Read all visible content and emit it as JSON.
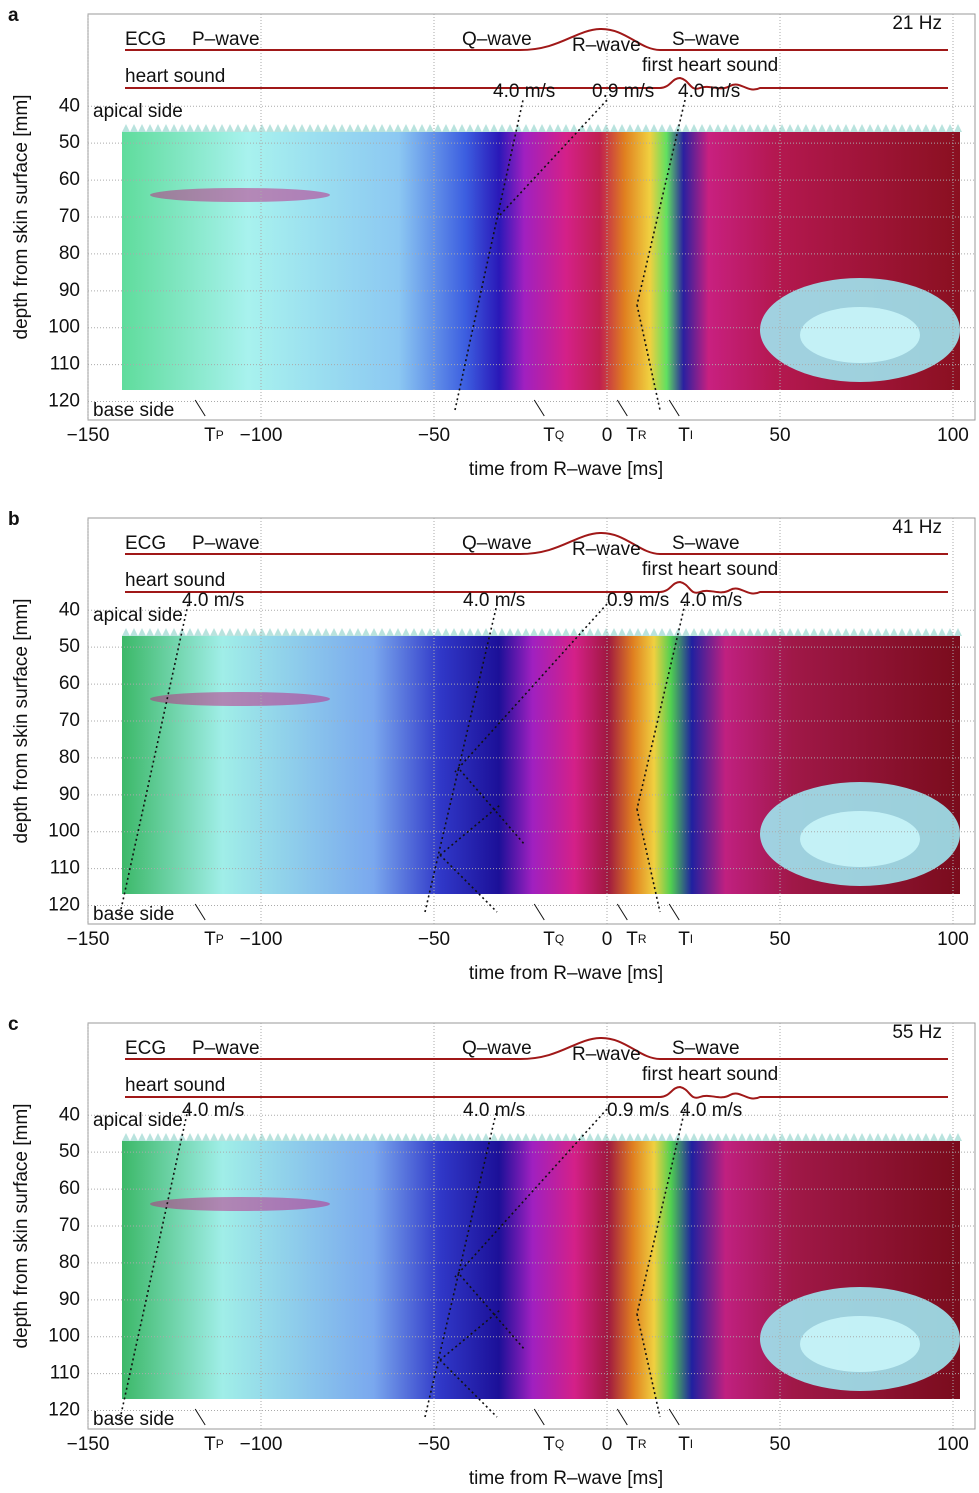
{
  "chart_data": [
    {
      "type": "heatmap",
      "panel_label": "a",
      "frequency_label": "21 Hz",
      "xlabel": "time from R–wave [ms]",
      "ylabel": "depth from skin surface [mm]",
      "xlim": [
        -150,
        100
      ],
      "xticks": [
        {
          "value": -150,
          "label": "−150"
        },
        {
          "value": -100,
          "label": "−100"
        },
        {
          "value": -50,
          "label": "−50"
        },
        0,
        50,
        100
      ],
      "ylim": [
        15,
        125
      ],
      "yticks": [
        40,
        50,
        60,
        70,
        80,
        90,
        100,
        110,
        120
      ],
      "y_inverted": true,
      "grid": true,
      "time_markers": [
        {
          "label": "T",
          "subscript": "P",
          "x": -117
        },
        {
          "label": "T",
          "subscript": "Q",
          "x": -19
        },
        {
          "label": "T",
          "subscript": "R",
          "x": 5
        },
        {
          "label": "T",
          "subscript": "I",
          "x": 20
        }
      ],
      "annotations": [
        "ECG",
        "P–wave",
        "Q–wave",
        "R–wave",
        "S–wave",
        "heart sound",
        "first heart sound",
        "apical side",
        "base side"
      ],
      "velocity_labels": [
        "4.0 m/s",
        "0.9 m/s",
        "4.0 m/s"
      ]
    },
    {
      "type": "heatmap",
      "panel_label": "b",
      "frequency_label": "41 Hz",
      "xlabel": "time from R–wave [ms]",
      "ylabel": "depth from skin surface [mm]",
      "xlim": [
        -150,
        100
      ],
      "xticks": [
        {
          "value": -150,
          "label": "−150"
        },
        {
          "value": -100,
          "label": "−100"
        },
        {
          "value": -50,
          "label": "−50"
        },
        0,
        50,
        100
      ],
      "ylim": [
        15,
        125
      ],
      "yticks": [
        40,
        50,
        60,
        70,
        80,
        90,
        100,
        110,
        120
      ],
      "y_inverted": true,
      "grid": true,
      "time_markers": [
        {
          "label": "T",
          "subscript": "P",
          "x": -117
        },
        {
          "label": "T",
          "subscript": "Q",
          "x": -19
        },
        {
          "label": "T",
          "subscript": "R",
          "x": 5
        },
        {
          "label": "T",
          "subscript": "I",
          "x": 20
        }
      ],
      "annotations": [
        "ECG",
        "P–wave",
        "Q–wave",
        "R–wave",
        "S–wave",
        "heart sound",
        "first heart sound",
        "apical side",
        "base side"
      ],
      "velocity_labels": [
        "4.0 m/s",
        "4.0 m/s",
        "0.9 m/s",
        "4.0 m/s"
      ]
    },
    {
      "type": "heatmap",
      "panel_label": "c",
      "frequency_label": "55 Hz",
      "xlabel": "time from R–wave [ms]",
      "ylabel": "depth from skin surface [mm]",
      "xlim": [
        -150,
        100
      ],
      "xticks": [
        {
          "value": -150,
          "label": "−150"
        },
        {
          "value": -100,
          "label": "−100"
        },
        {
          "value": -50,
          "label": "−50"
        },
        0,
        50,
        100
      ],
      "ylim": [
        15,
        125
      ],
      "yticks": [
        40,
        50,
        60,
        70,
        80,
        90,
        100,
        110,
        120
      ],
      "y_inverted": true,
      "grid": true,
      "time_markers": [
        {
          "label": "T",
          "subscript": "P",
          "x": -117
        },
        {
          "label": "T",
          "subscript": "Q",
          "x": -19
        },
        {
          "label": "T",
          "subscript": "R",
          "x": 5
        },
        {
          "label": "T",
          "subscript": "I",
          "x": 20
        }
      ],
      "annotations": [
        "ECG",
        "P–wave",
        "Q–wave",
        "R–wave",
        "S–wave",
        "heart sound",
        "first heart sound",
        "apical side",
        "base side"
      ],
      "velocity_labels": [
        "4.0 m/s",
        "4.0 m/s",
        "0.9 m/s",
        "4.0 m/s"
      ]
    }
  ]
}
